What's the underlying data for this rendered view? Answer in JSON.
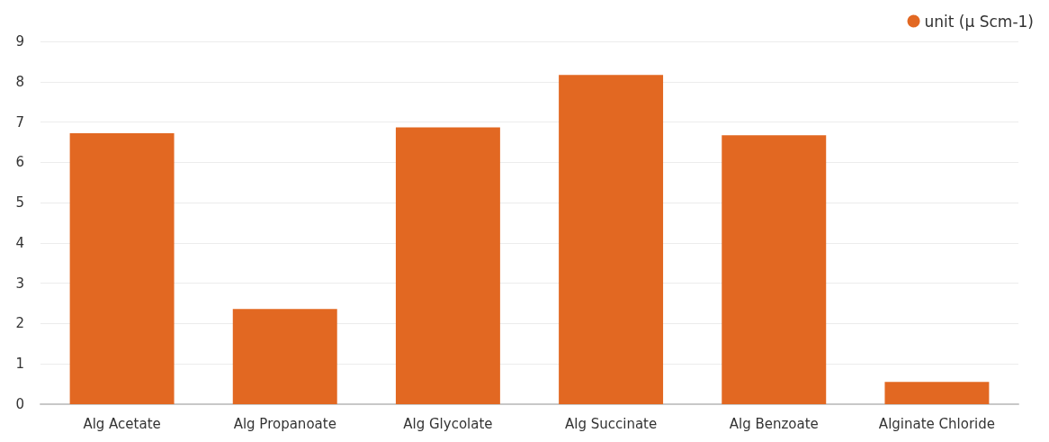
{
  "chart_data": {
    "type": "bar",
    "categories": [
      "Alg Acetate",
      "Alg Propanoate",
      "Alg Glycolate",
      "Alg Succinate",
      "Alg Benzoate",
      "Alginate Chloride"
    ],
    "series": [
      {
        "name": "unit (µ Scm-1)",
        "color": "#e26822",
        "values": [
          6.72,
          2.36,
          6.87,
          8.17,
          6.67,
          0.55
        ]
      }
    ],
    "ylim": [
      0,
      9
    ],
    "yticks": [
      0,
      1,
      2,
      3,
      4,
      5,
      6,
      7,
      8,
      9
    ],
    "grid": "y",
    "legend": "top right"
  }
}
